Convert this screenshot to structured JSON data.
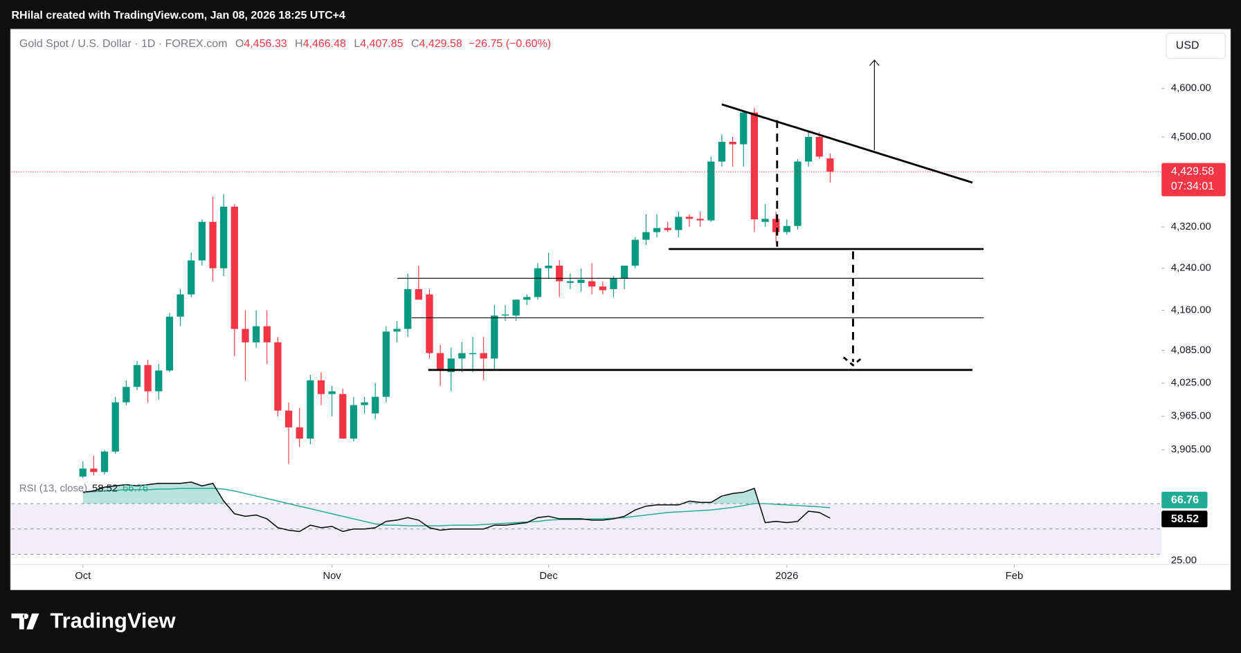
{
  "header": {
    "credit": "RHilal created with TradingView.com, Jan 08, 2026 18:25 UTC+4"
  },
  "branding": "TradingView",
  "chart_data": {
    "type": "candlestick",
    "title": "Gold Spot / U.S. Dollar · 1D · FOREX.com",
    "legend": [
      {
        "key": "O",
        "value": "4,456.33"
      },
      {
        "key": "H",
        "value": "4,466.48"
      },
      {
        "key": "L",
        "value": "4,407.85"
      },
      {
        "key": "C",
        "value": "4,429.58"
      }
    ],
    "change": "−26.75 (−0.60%)",
    "currency": "USD",
    "last_price_label": "4,429.58",
    "countdown": "07:34:01",
    "up_color": "#089981",
    "down_color": "#f23645",
    "log_scale": true,
    "open": [
      3858,
      3872,
      3866,
      3902,
      3990,
      4018,
      4058,
      4010,
      4048,
      4148,
      4190,
      4255,
      4330,
      4240,
      4360,
      4125,
      4100,
      4130,
      4100,
      3975,
      3945,
      3925,
      4030,
      4005,
      4005,
      3925,
      3985,
      3970,
      4000,
      4120,
      4125,
      4200,
      4190,
      4080,
      4045,
      4070,
      4078,
      4080,
      4070,
      4150,
      4150,
      4180,
      4185,
      4240,
      4245,
      4212,
      4212,
      4215,
      4205,
      4200,
      4220,
      4245,
      4295,
      4310,
      4318,
      4314,
      4340,
      4336,
      4333,
      4450,
      4490,
      4485,
      4550,
      4330,
      4336,
      4310,
      4322,
      4450,
      4500,
      4456.33
    ],
    "high": [
      3885,
      3895,
      3905,
      4000,
      4030,
      4065,
      4068,
      4060,
      4155,
      4200,
      4270,
      4335,
      4380,
      4385,
      4365,
      4160,
      4160,
      4160,
      4110,
      3990,
      3980,
      4040,
      4045,
      4020,
      4015,
      4000,
      4000,
      4025,
      4130,
      4140,
      4230,
      4245,
      4200,
      4095,
      4090,
      4100,
      4110,
      4110,
      4170,
      4170,
      4180,
      4190,
      4250,
      4270,
      4255,
      4230,
      4240,
      4250,
      4215,
      4225,
      4245,
      4300,
      4345,
      4345,
      4330,
      4350,
      4345,
      4350,
      4460,
      4505,
      4500,
      4555,
      4560,
      4365,
      4350,
      4335,
      4455,
      4510,
      4510,
      4466.48
    ],
    "low": [
      3852,
      3860,
      3862,
      3898,
      3985,
      4012,
      3990,
      3995,
      4045,
      4130,
      4185,
      4245,
      4215,
      4225,
      4075,
      4030,
      4090,
      4060,
      3965,
      3880,
      3910,
      3915,
      3985,
      3965,
      3925,
      3920,
      3970,
      3960,
      3990,
      4100,
      4110,
      4180,
      4070,
      4020,
      4010,
      4045,
      4045,
      4030,
      4050,
      4140,
      4140,
      4170,
      4180,
      4220,
      4185,
      4200,
      4195,
      4190,
      4190,
      4185,
      4200,
      4240,
      4285,
      4300,
      4310,
      4300,
      4320,
      4320,
      4330,
      4440,
      4440,
      4440,
      4310,
      4320,
      4290,
      4305,
      4315,
      4440,
      4455,
      4407.85
    ],
    "close": [
      3872,
      3866,
      3902,
      3990,
      4018,
      4058,
      4010,
      4048,
      4148,
      4190,
      4255,
      4330,
      4240,
      4360,
      4125,
      4100,
      4130,
      4100,
      3975,
      3945,
      3925,
      4030,
      4005,
      4010,
      3925,
      3985,
      3990,
      4000,
      4120,
      4125,
      4200,
      4180,
      4080,
      4050,
      4070,
      4080,
      4080,
      4070,
      4150,
      4152,
      4180,
      4185,
      4240,
      4245,
      4215,
      4215,
      4218,
      4205,
      4198,
      4220,
      4245,
      4295,
      4310,
      4318,
      4314,
      4340,
      4336,
      4333,
      4450,
      4490,
      4485,
      4550,
      4335,
      4336,
      4310,
      4322,
      4450,
      4500,
      4460,
      4429.58
    ],
    "xlim": [
      -6.6,
      99.6
    ],
    "xticks": [
      {
        "value": 0,
        "label": "Oct"
      },
      {
        "value": 23,
        "label": "Nov"
      },
      {
        "value": 43,
        "label": "Dec"
      },
      {
        "value": 65,
        "label": "2026"
      },
      {
        "value": 86,
        "label": "Feb"
      }
    ],
    "ylim": [
      3855,
      4725
    ],
    "yticks": [
      {
        "value": 4600,
        "label": "4,600.00"
      },
      {
        "value": 4500,
        "label": "4,500.00"
      },
      {
        "value": 4320,
        "label": "4,320.00"
      },
      {
        "value": 4240,
        "label": "4,240.00"
      },
      {
        "value": 4160,
        "label": "4,160.00"
      },
      {
        "value": 4085,
        "label": "4,085.00"
      },
      {
        "value": 4025,
        "label": "4,025.00"
      },
      {
        "value": 3965,
        "label": "3,965.00"
      },
      {
        "value": 3905,
        "label": "3,905.00"
      }
    ],
    "rsi": {
      "title": "RSI (13, close)",
      "ylim": [
        22,
        90
      ],
      "yticks": [
        {
          "value": 25,
          "label": "25.00"
        }
      ],
      "bands": [
        70,
        50,
        30
      ],
      "series": [
        {
          "color": "#000000",
          "values": [
            79,
            80,
            83,
            84,
            85,
            84,
            85,
            86,
            86,
            86,
            87,
            84,
            86,
            72,
            62,
            60,
            61,
            58,
            51,
            49,
            48,
            53,
            51,
            52,
            48,
            50,
            50,
            51,
            56,
            57,
            59,
            57,
            51,
            49,
            50,
            50,
            50,
            50,
            53,
            53,
            54,
            55,
            59,
            60,
            58,
            58,
            58,
            57,
            57,
            58,
            60,
            65,
            68,
            69,
            69,
            69,
            72,
            71,
            71,
            76,
            78,
            79,
            82,
            55,
            56,
            55,
            56,
            64,
            63,
            58.52
          ]
        },
        {
          "color": "#22ab94",
          "values": [
            79,
            79.5,
            80,
            80.5,
            81,
            81,
            81,
            81.5,
            81.5,
            82,
            82,
            82,
            82,
            81.5,
            80,
            78,
            76,
            74,
            72,
            70,
            68,
            66,
            64,
            62,
            60,
            58,
            56,
            54,
            53,
            53,
            52.5,
            52.5,
            52.5,
            52.5,
            53,
            53,
            53,
            53.5,
            54,
            54.5,
            55,
            55.5,
            56,
            57,
            57.5,
            57.5,
            57.5,
            58,
            58,
            58.5,
            59,
            60,
            61,
            62,
            63,
            63.5,
            64,
            64.5,
            65,
            66,
            67,
            68.5,
            70,
            70,
            69.5,
            69,
            68.5,
            68,
            67.5,
            66.76
          ]
        }
      ]
    }
  }
}
